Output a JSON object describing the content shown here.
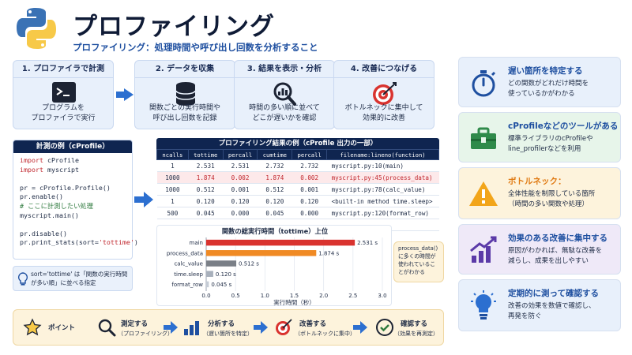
{
  "header": {
    "title": "プロファイリング",
    "subtitle": "プロファイリング：処理時間や呼び出し回数を分析すること"
  },
  "steps": [
    {
      "label": "1. プロファイラで計測",
      "desc": "プログラムを\nプロファイラで実行"
    },
    {
      "label": "2. データを収集",
      "desc": "関数ごとの実行時間や\n呼び出し回数を記録"
    },
    {
      "label": "3. 結果を表示・分析",
      "desc": "時間の多い順に並べて\nどこが遅いかを確認"
    },
    {
      "label": "4. 改善につなげる",
      "desc": "ボトルネックに集中して\n効果的に改善"
    }
  ],
  "code_example": {
    "title": "計測の例（cProfile）",
    "lines": [
      {
        "kw": "import",
        "rest": " cProfile"
      },
      {
        "kw": "import",
        "rest": " myscript"
      },
      {
        "kw": "",
        "rest": ""
      },
      {
        "kw": "",
        "rest": "pr = cProfile.Profile()"
      },
      {
        "kw": "",
        "rest": "pr.enable()"
      },
      {
        "kw": "",
        "rest": "",
        "comment": "# ここに計測したい処理"
      },
      {
        "kw": "",
        "rest": "myscript.main()"
      },
      {
        "kw": "",
        "rest": ""
      },
      {
        "kw": "",
        "rest": "pr.disable()"
      },
      {
        "kw": "",
        "rest": "pr.print_stats(sort=",
        "str": "'tottime'",
        "end": ")"
      }
    ],
    "tip": "sort='tottime' は「関数の実行時間が多い順」に並べる指定"
  },
  "results_table": {
    "title": "プロファイリング結果の例（cProfile 出力の一部）",
    "columns": [
      "ncalls",
      "tottime",
      "percall",
      "cumtime",
      "percall",
      "filename:lineno(function)"
    ],
    "rows": [
      [
        "1",
        "2.531",
        "2.531",
        "2.732",
        "2.732",
        "myscript.py:10(main)"
      ],
      [
        "1000",
        "1.874",
        "0.002",
        "1.874",
        "0.002",
        "myscript.py:45(process_data)"
      ],
      [
        "1000",
        "0.512",
        "0.001",
        "0.512",
        "0.001",
        "myscript.py:78(calc_value)"
      ],
      [
        "1",
        "0.120",
        "0.120",
        "0.120",
        "0.120",
        "<built-in method time.sleep>"
      ],
      [
        "500",
        "0.045",
        "0.000",
        "0.045",
        "0.000",
        "myscript.py:120(format_row)"
      ],
      [
        "...",
        "...",
        "...",
        "...",
        "...",
        "..."
      ]
    ],
    "highlight_row": 1
  },
  "chart_data": {
    "type": "bar",
    "orientation": "horizontal",
    "title": "関数の総実行時間（tottime）上位",
    "xlabel": "実行時間（秒）",
    "ylabel": "",
    "categories": [
      "main",
      "process_data",
      "calc_value",
      "time.sleep",
      "format_row"
    ],
    "values": [
      2.531,
      1.874,
      0.512,
      0.12,
      0.045
    ],
    "value_labels": [
      "2.531 s",
      "1.874 s",
      "0.512 s",
      "0.120 s",
      "0.045 s"
    ],
    "colors": [
      "#d9332f",
      "#f08a24",
      "#7a7f87",
      "#a8b0bc",
      "#c5ccd6"
    ],
    "xlim": [
      0,
      3.0
    ],
    "xticks": [
      "0.0",
      "0.5",
      "1.0",
      "1.5",
      "2.0",
      "2.5",
      "3.0"
    ],
    "grid": true
  },
  "callout": "process_data() に多くの時間が使われていることがわかる",
  "cards": [
    {
      "title": "遅い箇所を特定する",
      "desc": "どの関数がどれだけ時間を\n使っているかがわかる",
      "icon": "stopwatch-icon",
      "bg": "#e8f0fb",
      "color": "#1e4fa0"
    },
    {
      "title": "cProfileなどのツールがある",
      "desc": "標準ライブラリのcProfileや\nline_profilerなどを利用",
      "icon": "toolbox-icon",
      "bg": "#e7f5ea",
      "color": "#1e4fa0"
    },
    {
      "title": "ボトルネック：",
      "desc": "全体性能を制限している箇所\n（時間の多い関数や処理）",
      "icon": "warning-icon",
      "bg": "#fdf3dc",
      "color": "#1e4fa0"
    },
    {
      "title": "効果のある改善に集中する",
      "desc": "原因がわかれば、無駄な改善を\n減らし、成果を出しやすい",
      "icon": "growth-chart-icon",
      "bg": "#efe9f8",
      "color": "#1e4fa0"
    },
    {
      "title": "定期的に測って確認する",
      "desc": "改善の効果を数値で確認し、\n再発を防ぐ",
      "icon": "lightbulb-icon",
      "bg": "#e8f0fb",
      "color": "#1e4fa0"
    }
  ],
  "bottom": {
    "point": "ポイント",
    "items": [
      {
        "label": "測定する",
        "sub": "（プロファイリング）"
      },
      {
        "label": "分析する",
        "sub": "（遅い箇所を特定）"
      },
      {
        "label": "改善する",
        "sub": "（ボトルネックに集中）"
      },
      {
        "label": "確認する",
        "sub": "（効果を再測定）"
      }
    ]
  }
}
